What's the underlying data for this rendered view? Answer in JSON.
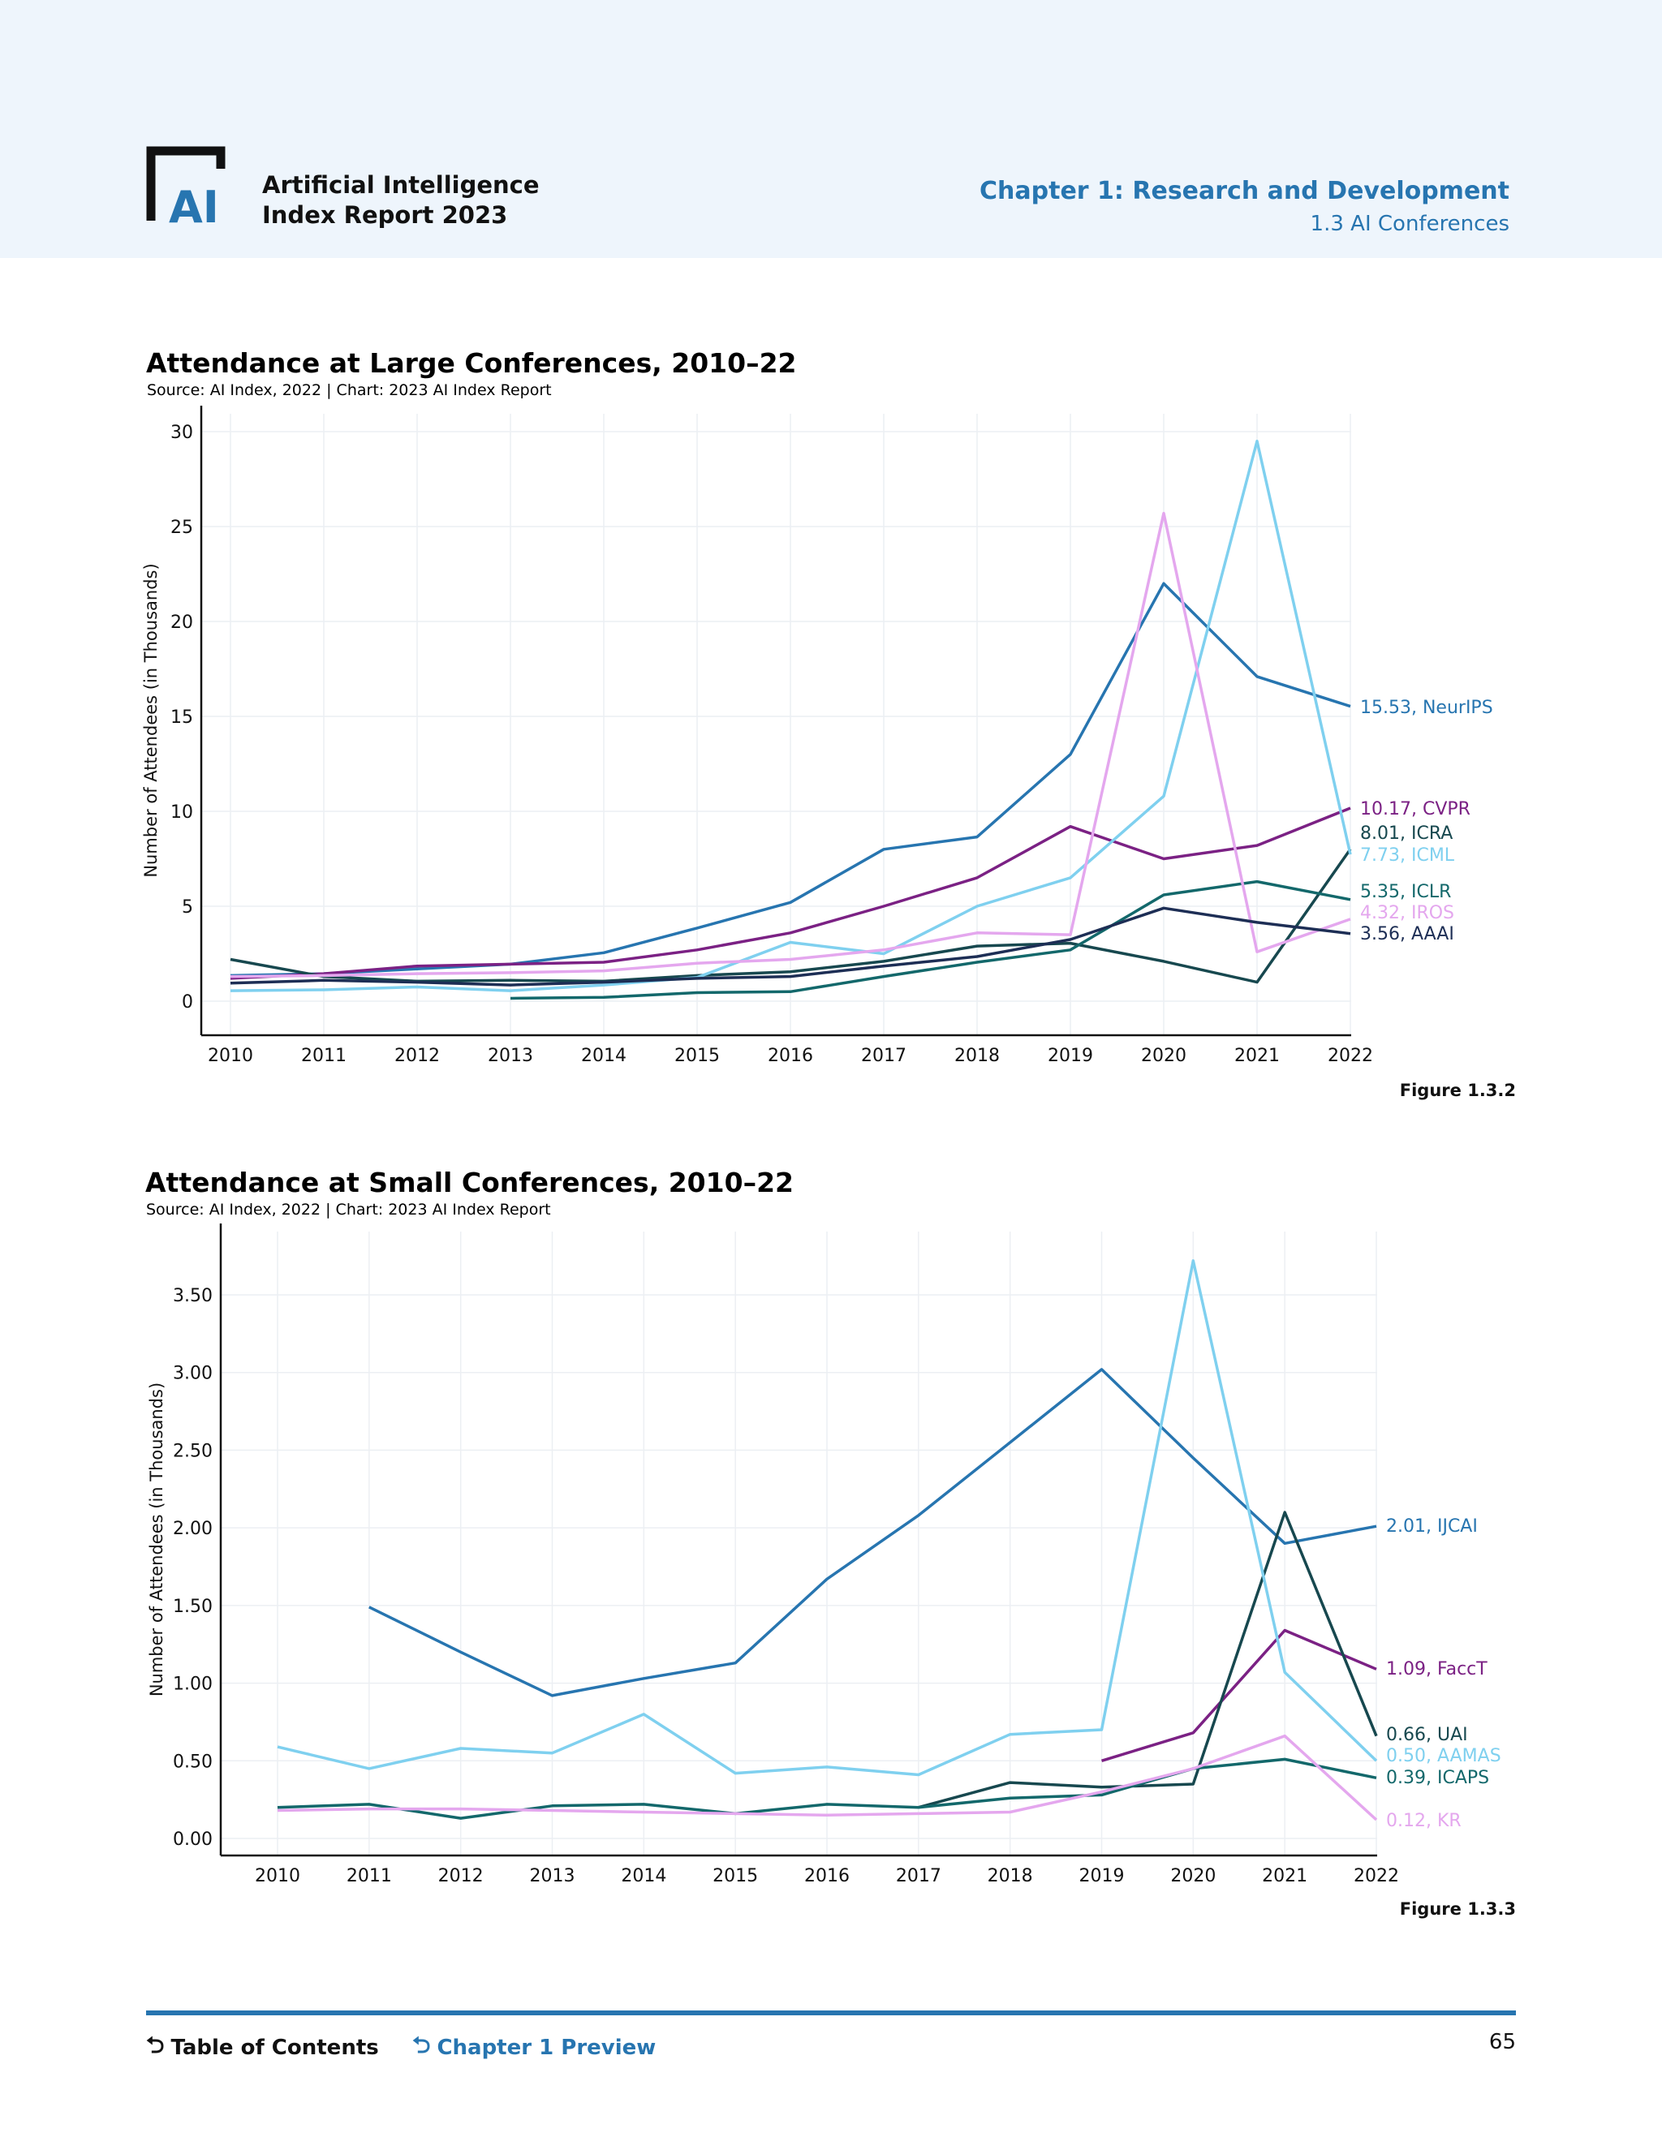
{
  "header": {
    "report_line1": "Artificial Intelligence",
    "report_line2": "Index Report 2023",
    "chapter": "Chapter 1: Research and Development",
    "section": "1.3 AI Conferences",
    "logo_text": "AI"
  },
  "charts_meta": {
    "large": {
      "title": "Attendance at Large Conferences, 2010–22",
      "source": "Source: AI Index, 2022 | Chart: 2023 AI Index Report",
      "figure": "Figure 1.3.2"
    },
    "small": {
      "title": "Attendance at Small Conferences, 2010–22",
      "source": "Source: AI Index, 2022 | Chart: 2023 AI Index Report",
      "figure": "Figure 1.3.3"
    }
  },
  "chart_data": [
    {
      "type": "line",
      "title": "Attendance at Large Conferences, 2010–22",
      "xlabel": "",
      "ylabel": "Number of Attendees (in Thousands)",
      "x": [
        2010,
        2011,
        2012,
        2013,
        2014,
        2015,
        2016,
        2017,
        2018,
        2019,
        2020,
        2021,
        2022
      ],
      "ylim": [
        0,
        30
      ],
      "yticks": [
        0,
        5,
        10,
        15,
        20,
        25,
        30
      ],
      "ytick_format": "int",
      "grid": true,
      "series": [
        {
          "name": "NeurIPS",
          "color": "#2775b0",
          "end_label": "15.53, NeurIPS",
          "values": [
            1.35,
            1.45,
            1.7,
            1.95,
            2.55,
            3.85,
            5.2,
            8.0,
            8.65,
            13.0,
            22.0,
            17.1,
            15.53
          ]
        },
        {
          "name": "CVPR",
          "color": "#7b2184",
          "end_label": "10.17, CVPR",
          "values": [
            1.2,
            1.45,
            1.85,
            1.95,
            2.05,
            2.7,
            3.6,
            5.0,
            6.5,
            9.2,
            7.5,
            8.2,
            10.17
          ]
        },
        {
          "name": "ICRA",
          "color": "#17484f",
          "end_label": "8.01, ICRA",
          "values": [
            2.2,
            1.3,
            1.05,
            1.1,
            1.05,
            1.35,
            1.55,
            2.1,
            2.9,
            3.05,
            2.1,
            1.0,
            8.01
          ]
        },
        {
          "name": "ICML",
          "color": "#7fd0ef",
          "end_label": "7.73, ICML",
          "values": [
            0.55,
            0.6,
            0.75,
            0.55,
            0.85,
            1.25,
            3.1,
            2.5,
            5.0,
            6.5,
            10.8,
            29.5,
            7.73
          ]
        },
        {
          "name": "ICLR",
          "color": "#13686b",
          "end_label": "5.35, ICLR",
          "values": [
            null,
            null,
            null,
            0.15,
            0.2,
            0.45,
            0.5,
            1.3,
            2.05,
            2.7,
            5.6,
            6.3,
            5.35
          ]
        },
        {
          "name": "IROS",
          "color": "#e4a7ee",
          "end_label": "4.32, IROS",
          "values": [
            1.3,
            1.35,
            1.45,
            1.5,
            1.6,
            2.0,
            2.2,
            2.7,
            3.6,
            3.5,
            25.7,
            2.6,
            4.32
          ]
        },
        {
          "name": "AAAI",
          "color": "#1d2e55",
          "end_label": "3.56, AAAI",
          "values": [
            0.95,
            1.1,
            1.0,
            0.85,
            1.0,
            1.2,
            1.3,
            1.85,
            2.35,
            3.25,
            4.9,
            4.15,
            3.56
          ]
        }
      ]
    },
    {
      "type": "line",
      "title": "Attendance at Small Conferences, 2010–22",
      "xlabel": "",
      "ylabel": "Number of Attendees (in Thousands)",
      "x": [
        2010,
        2011,
        2012,
        2013,
        2014,
        2015,
        2016,
        2017,
        2018,
        2019,
        2020,
        2021,
        2022
      ],
      "ylim": [
        0,
        3.5
      ],
      "yticks": [
        0,
        0.5,
        1.0,
        1.5,
        2.0,
        2.5,
        3.0,
        3.5
      ],
      "ytick_format": "2dp",
      "grid": true,
      "series": [
        {
          "name": "IJCAI",
          "color": "#2775b0",
          "end_label": "2.01, IJCAI",
          "values": [
            null,
            1.49,
            1.2,
            0.92,
            1.03,
            1.13,
            1.67,
            2.08,
            2.55,
            3.02,
            2.45,
            1.9,
            2.01
          ]
        },
        {
          "name": "FaccT",
          "color": "#7b2184",
          "end_label": "1.09, FaccT",
          "values": [
            null,
            null,
            null,
            null,
            null,
            null,
            null,
            null,
            null,
            0.5,
            0.68,
            1.34,
            1.09
          ]
        },
        {
          "name": "UAI",
          "color": "#17484f",
          "end_label": "0.66, UAI",
          "values": [
            null,
            null,
            null,
            null,
            null,
            null,
            null,
            0.2,
            0.36,
            0.33,
            0.35,
            2.1,
            0.66
          ]
        },
        {
          "name": "AAMAS",
          "color": "#7fd0ef",
          "end_label": "0.50, AAMAS",
          "values": [
            0.59,
            0.45,
            0.58,
            0.55,
            0.8,
            0.42,
            0.46,
            0.41,
            0.67,
            0.7,
            3.72,
            1.07,
            0.5
          ]
        },
        {
          "name": "ICAPS",
          "color": "#13686b",
          "end_label": "0.39, ICAPS",
          "values": [
            0.2,
            0.22,
            0.13,
            0.21,
            0.22,
            0.16,
            0.22,
            0.2,
            0.26,
            0.28,
            0.45,
            0.51,
            0.39
          ]
        },
        {
          "name": "KR",
          "color": "#e4a7ee",
          "end_label": "0.12, KR",
          "values": [
            0.18,
            0.19,
            0.19,
            0.18,
            0.17,
            0.16,
            0.15,
            0.16,
            0.17,
            0.3,
            0.45,
            0.66,
            0.12
          ]
        }
      ]
    }
  ],
  "footer": {
    "toc": "Table of Contents",
    "preview": "Chapter 1 Preview",
    "page": "65",
    "arrow": "⮌"
  }
}
